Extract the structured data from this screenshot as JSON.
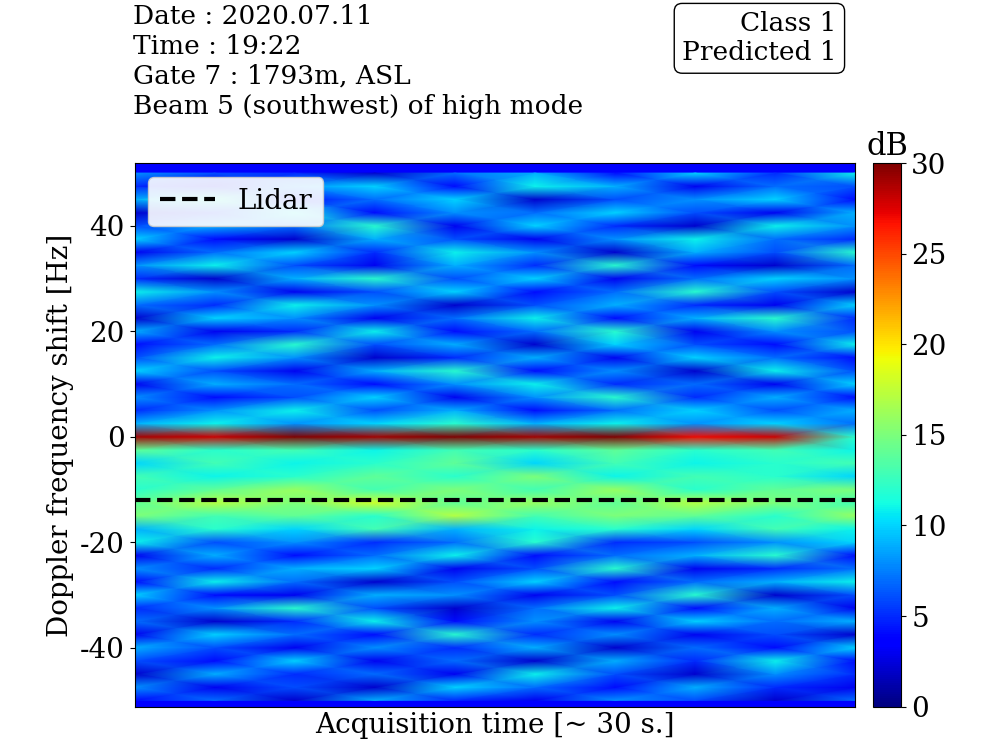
{
  "chart_data": {
    "type": "heatmap",
    "header": [
      "Date : 2020.07.11",
      "Time : 19:22",
      "Gate 7 : 1793m, ASL",
      "Beam 5 (southwest) of high mode"
    ],
    "class_box": [
      "Class 1",
      "Predicted 1"
    ],
    "x_label": "Acquisition time [~ 30 s.]",
    "y_label": "Doppler frequency shift [Hz]",
    "ylim": [
      -51.2,
      51.9
    ],
    "yticks": [
      -40,
      -20,
      0,
      20,
      40
    ],
    "tick_labels": "y",
    "legend": "upper left",
    "lines": [
      {
        "name": "Lidar",
        "value": -12,
        "color": "black",
        "line_style": "dashed"
      }
    ],
    "colorbar": {
      "label": "dB",
      "lim": [
        0,
        30
      ],
      "ticks": [
        0,
        5,
        10,
        15,
        20,
        25,
        30
      ]
    },
    "frequencies": [
      -50,
      -47.5,
      -45,
      -42.5,
      -40,
      -37.5,
      -35,
      -32.5,
      -30,
      -27.5,
      -25,
      -22.5,
      -20,
      -17.5,
      -15,
      -12.5,
      -10,
      -7.5,
      -5,
      -2.5,
      0,
      2.5,
      5,
      7.5,
      10,
      12.5,
      15,
      17.5,
      20,
      22.5,
      25,
      27.5,
      30,
      32.5,
      35,
      37.5,
      40,
      42.5,
      45,
      47.5,
      50
    ],
    "cells": [
      [
        4,
        7,
        2,
        9,
        5,
        3,
        8,
        6,
        2,
        7
      ],
      [
        8,
        3,
        6,
        2,
        10,
        7,
        4,
        9,
        5,
        3
      ],
      [
        2,
        9,
        5,
        7,
        3,
        11,
        6,
        2,
        8,
        5
      ],
      [
        6,
        4,
        10,
        3,
        7,
        2,
        9,
        5,
        11,
        4
      ],
      [
        9,
        6,
        3,
        8,
        5,
        9,
        2,
        7,
        4,
        10
      ],
      [
        3,
        10,
        7,
        4,
        12,
        5,
        8,
        3,
        6,
        2
      ],
      [
        7,
        2,
        5,
        11,
        4,
        8,
        3,
        10,
        7,
        9
      ],
      [
        5,
        8,
        12,
        6,
        2,
        7,
        11,
        4,
        9,
        3
      ],
      [
        10,
        4,
        3,
        9,
        8,
        3,
        6,
        12,
        2,
        6
      ],
      [
        4,
        11,
        7,
        2,
        6,
        10,
        4,
        7,
        9,
        11
      ],
      [
        8,
        5,
        9,
        10,
        3,
        6,
        12,
        3,
        5,
        7
      ],
      [
        3,
        9,
        4,
        7,
        11,
        4,
        7,
        9,
        12,
        4
      ],
      [
        11,
        6,
        8,
        5,
        7,
        12,
        5,
        6,
        8,
        10
      ],
      [
        9,
        12,
        10,
        13,
        9,
        11,
        12,
        10,
        13,
        11
      ],
      [
        15,
        13,
        14,
        12,
        17,
        13,
        15,
        14,
        12,
        16
      ],
      [
        14,
        17,
        15,
        18,
        14,
        16,
        14,
        17,
        15,
        13
      ],
      [
        12,
        14,
        16,
        13,
        15,
        13,
        16,
        12,
        14,
        15
      ],
      [
        13,
        11,
        12,
        14,
        12,
        15,
        11,
        13,
        12,
        10
      ],
      [
        10,
        13,
        11,
        12,
        14,
        10,
        13,
        11,
        12,
        13
      ],
      [
        14,
        12,
        13,
        11,
        13,
        12,
        14,
        12,
        13,
        11
      ],
      [
        29,
        28,
        30,
        29,
        30,
        29,
        30,
        27,
        28,
        12
      ],
      [
        9,
        11,
        8,
        10,
        12,
        9,
        11,
        8,
        10,
        7
      ],
      [
        5,
        8,
        11,
        6,
        9,
        4,
        7,
        10,
        6,
        9
      ],
      [
        8,
        4,
        6,
        10,
        3,
        8,
        12,
        5,
        9,
        4
      ],
      [
        3,
        9,
        7,
        4,
        8,
        11,
        5,
        7,
        3,
        10
      ],
      [
        10,
        6,
        3,
        9,
        12,
        4,
        8,
        2,
        11,
        6
      ],
      [
        6,
        11,
        8,
        2,
        5,
        9,
        3,
        10,
        7,
        4
      ],
      [
        4,
        7,
        12,
        6,
        9,
        2,
        10,
        6,
        4,
        11
      ],
      [
        9,
        3,
        5,
        11,
        4,
        7,
        12,
        3,
        8,
        6
      ],
      [
        2,
        10,
        8,
        3,
        7,
        11,
        4,
        9,
        12,
        5
      ],
      [
        7,
        5,
        11,
        8,
        2,
        6,
        9,
        5,
        3,
        10
      ],
      [
        11,
        8,
        3,
        6,
        10,
        4,
        7,
        12,
        6,
        2
      ],
      [
        5,
        2,
        9,
        12,
        6,
        10,
        3,
        7,
        10,
        8
      ],
      [
        8,
        11,
        6,
        3,
        9,
        5,
        12,
        4,
        2,
        7
      ],
      [
        3,
        7,
        10,
        5,
        11,
        8,
        2,
        9,
        6,
        12
      ],
      [
        10,
        4,
        2,
        9,
        6,
        3,
        8,
        11,
        7,
        5
      ],
      [
        6,
        9,
        7,
        12,
        3,
        10,
        5,
        2,
        11,
        8
      ],
      [
        2,
        5,
        11,
        4,
        8,
        7,
        10,
        6,
        3,
        9
      ],
      [
        9,
        12,
        4,
        7,
        10,
        2,
        6,
        8,
        10,
        4
      ],
      [
        5,
        3,
        8,
        10,
        4,
        11,
        9,
        3,
        7,
        6
      ],
      [
        8,
        6,
        5,
        2,
        7,
        9,
        4,
        10,
        5,
        11
      ]
    ]
  }
}
